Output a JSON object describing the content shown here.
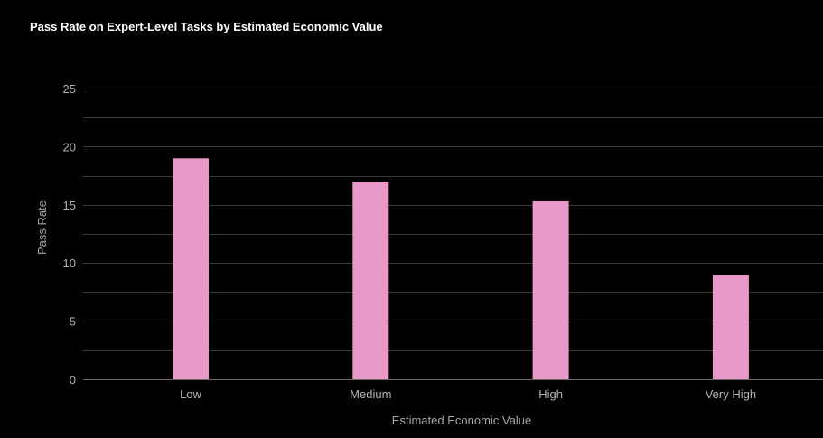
{
  "chart_data": {
    "type": "bar",
    "title": "Pass Rate on Expert-Level Tasks by Estimated Economic Value",
    "xlabel": "Estimated Economic Value",
    "ylabel": "Pass Rate",
    "categories": [
      "Low",
      "Medium",
      "High",
      "Very High"
    ],
    "values": [
      19,
      17,
      15.3,
      9
    ],
    "ylim": [
      0,
      25
    ],
    "yticks": [
      0,
      5,
      10,
      15,
      20,
      25
    ],
    "grid": true,
    "legend": "none",
    "bar_color": "#e899c8",
    "background": "#000000",
    "grid_color": "#3a3a3a"
  }
}
